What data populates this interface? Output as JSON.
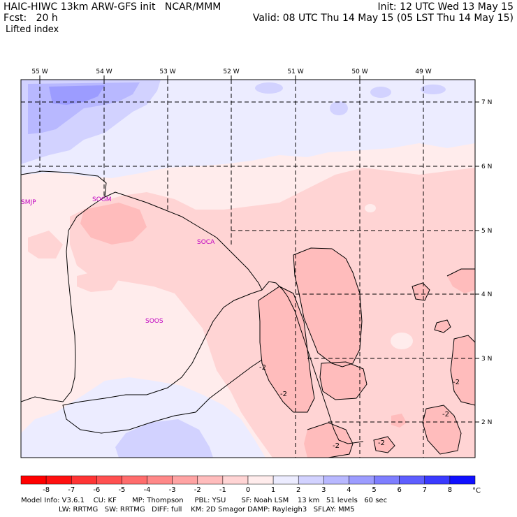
{
  "header": {
    "model_title": "HAIC-HIWC 13km ARW-GFS init   NCAR/MMM",
    "fcst": "Fcst:   20 h",
    "field": "Lifted index",
    "init": "Init: 12 UTC Wed 13 May 15",
    "valid": "Valid: 08 UTC Thu 14 May 15 (05 LST Thu 14 May 15)"
  },
  "map": {
    "lon_labels": [
      "55 W",
      "54 W",
      "53 W",
      "52 W",
      "51 W",
      "50 W",
      "49 W"
    ],
    "lat_labels": [
      "7 N",
      "6 N",
      "5 N",
      "4 N",
      "3 N",
      "2 N"
    ],
    "stations": [
      "SMJP",
      "SOGM",
      "SOCA",
      "SOOS"
    ],
    "contour_labels": [
      "-2",
      "-2",
      "-2",
      "-2",
      "-2",
      "-2"
    ]
  },
  "colorbar": {
    "labels": [
      "-8",
      "-7",
      "-6",
      "-5",
      "-4",
      "-3",
      "-2",
      "-1",
      "0",
      "1",
      "2",
      "3",
      "4",
      "5",
      "6",
      "7",
      "8"
    ],
    "unit": "°C",
    "colors": [
      "#ff1010",
      "#ff3434",
      "#ff5050",
      "#ff6c6c",
      "#ff8888",
      "#ffa3a3",
      "#ffbcbc",
      "#ffd4d4",
      "#ffecec",
      "#ececff",
      "#d2d2ff",
      "#b8b8ff",
      "#9c9cff",
      "#7e7eff",
      "#5e5eff",
      "#3a3aff",
      "#1010ff"
    ]
  },
  "footer": {
    "line1": "Model Info: V3.6.1    CU: KF       MP: Thompson     PBL: YSU       SF: Noah LSM    13 km   51 levels   60 sec",
    "line2": "                 LW: RRTMG   SW: RRTMG   DIFF: full    KM: 2D Smagor DAMP: Rayleigh3   SFLAY: MM5"
  }
}
